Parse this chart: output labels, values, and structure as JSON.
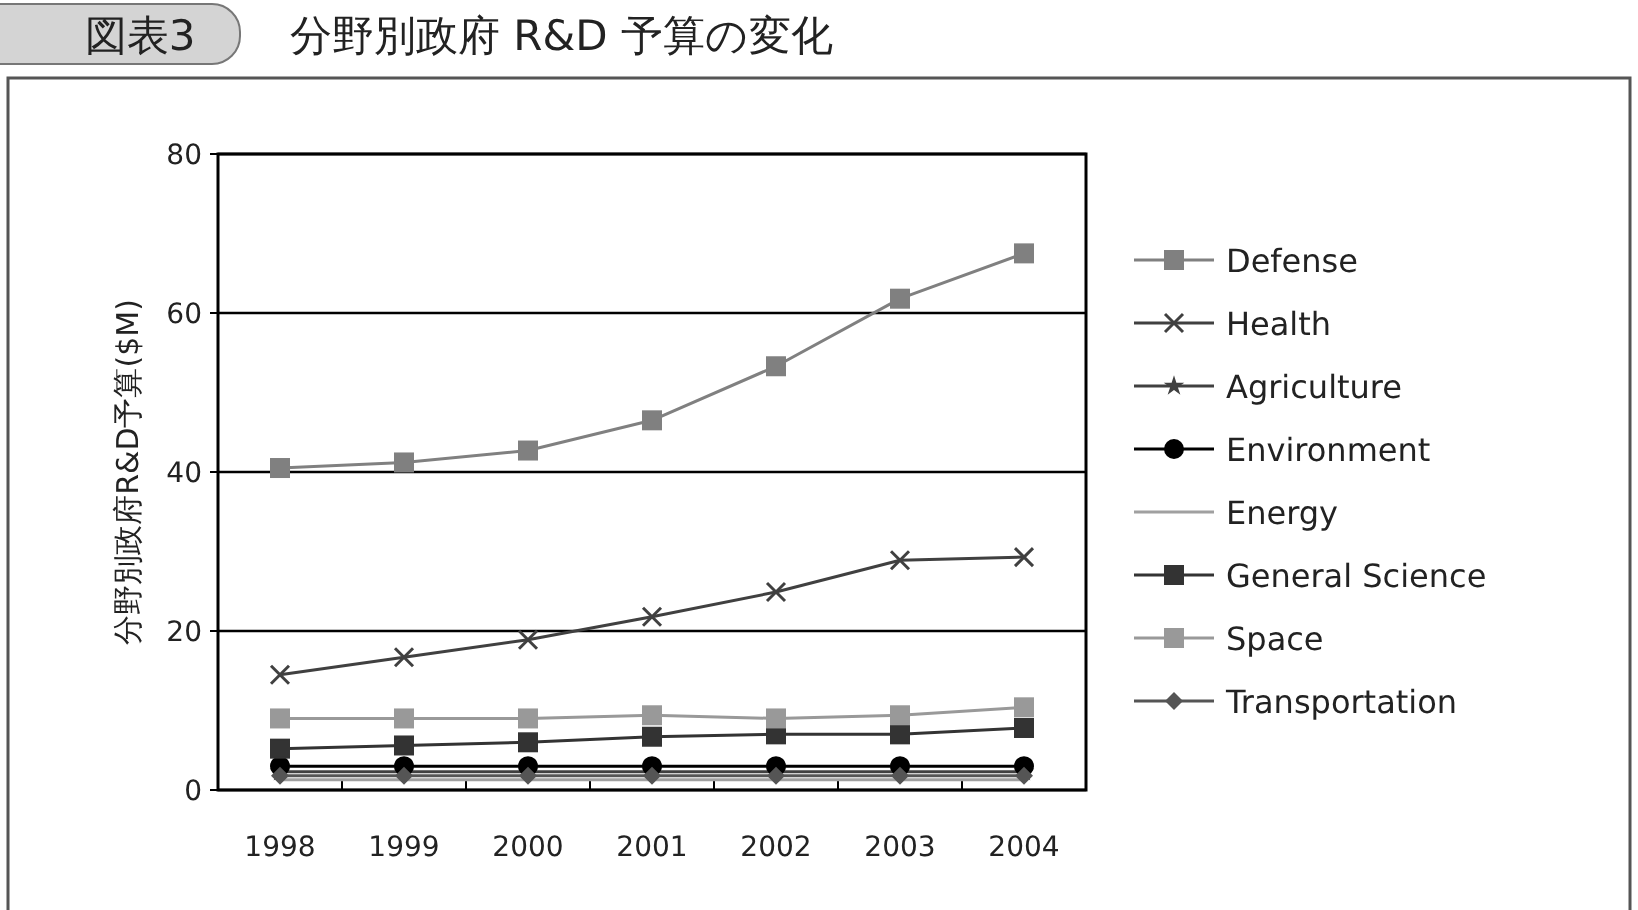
{
  "chart_data": {
    "type": "line",
    "title": "分野別政府 R&D 予算の変化",
    "annotations": [
      "図表3"
    ],
    "ylabel": "分野別政府R&D予算($M)",
    "categories": [
      "1998",
      "1999",
      "2000",
      "2001",
      "2002",
      "2003",
      "2004"
    ],
    "ylim": [
      0,
      80
    ],
    "yticks": [
      0,
      20,
      40,
      60,
      80
    ],
    "grid": "y",
    "legend": "right",
    "series": [
      {
        "name": "Defense",
        "color": "#808080",
        "marker": "square",
        "values": [
          40.5,
          41.2,
          42.7,
          46.5,
          53.3,
          61.8,
          67.5
        ]
      },
      {
        "name": "Health",
        "color": "#404040",
        "marker": "cross",
        "values": [
          14.5,
          16.7,
          18.9,
          21.8,
          24.9,
          28.9,
          29.3
        ]
      },
      {
        "name": "Agriculture",
        "color": "#404040",
        "marker": "star",
        "values": [
          2.3,
          2.3,
          2.3,
          2.3,
          2.3,
          2.3,
          2.3
        ]
      },
      {
        "name": "Environment",
        "color": "#000000",
        "marker": "circle",
        "values": [
          3.0,
          3.0,
          3.0,
          3.0,
          3.0,
          3.0,
          3.0
        ]
      },
      {
        "name": "Energy",
        "color": "#a0a0a0",
        "marker": "none",
        "values": [
          1.3,
          1.3,
          1.3,
          1.3,
          1.3,
          1.3,
          1.3
        ]
      },
      {
        "name": "General Science",
        "color": "#333333",
        "marker": "square",
        "values": [
          5.2,
          5.6,
          6.0,
          6.7,
          7.0,
          7.0,
          7.8
        ]
      },
      {
        "name": "Space",
        "color": "#999999",
        "marker": "square",
        "values": [
          9.0,
          9.0,
          9.0,
          9.4,
          9.0,
          9.4,
          10.4
        ]
      },
      {
        "name": "Transportation",
        "color": "#555555",
        "marker": "diamond",
        "values": [
          1.8,
          1.8,
          1.8,
          1.8,
          1.8,
          1.8,
          1.8
        ]
      }
    ]
  }
}
